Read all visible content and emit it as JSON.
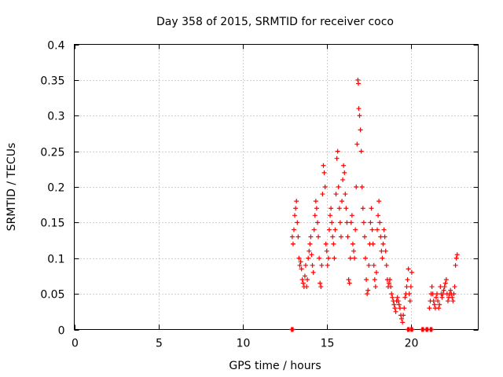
{
  "chart_data": {
    "type": "scatter",
    "title": "Day 358 of 2015, SRMTID for receiver coco",
    "xlabel": "GPS time / hours",
    "ylabel": "SRMTID / TECUs",
    "xlim": [
      0,
      24
    ],
    "ylim": [
      0,
      0.4
    ],
    "xticks": [
      0,
      5,
      10,
      15,
      20
    ],
    "yticks": [
      0,
      0.05,
      0.1,
      0.15,
      0.2,
      0.25,
      0.3,
      0.35,
      0.4
    ],
    "xtick_labels": [
      "0",
      "5",
      "10",
      "15",
      "20"
    ],
    "ytick_labels": [
      "0",
      "0.05",
      "0.1",
      "0.15",
      "0.2",
      "0.25",
      "0.3",
      "0.35",
      "0.4"
    ],
    "grid": true,
    "marker": "+",
    "color": "#ff0000",
    "series": [
      {
        "name": "SRMTID",
        "points": [
          [
            12.95,
            0.13
          ],
          [
            13.0,
            0.12
          ],
          [
            13.05,
            0.14
          ],
          [
            13.1,
            0.16
          ],
          [
            13.15,
            0.17
          ],
          [
            13.2,
            0.18
          ],
          [
            13.25,
            0.15
          ],
          [
            13.3,
            0.13
          ],
          [
            13.35,
            0.1
          ],
          [
            13.4,
            0.09
          ],
          [
            13.45,
            0.095
          ],
          [
            13.5,
            0.085
          ],
          [
            13.55,
            0.07
          ],
          [
            13.6,
            0.065
          ],
          [
            13.65,
            0.06
          ],
          [
            13.7,
            0.075
          ],
          [
            13.75,
            0.09
          ],
          [
            13.8,
            0.06
          ],
          [
            13.85,
            0.07
          ],
          [
            13.9,
            0.1
          ],
          [
            13.95,
            0.11
          ],
          [
            14.0,
            0.12
          ],
          [
            14.05,
            0.13
          ],
          [
            14.1,
            0.105
          ],
          [
            14.15,
            0.09
          ],
          [
            14.2,
            0.08
          ],
          [
            14.25,
            0.14
          ],
          [
            14.3,
            0.16
          ],
          [
            14.35,
            0.18
          ],
          [
            14.4,
            0.17
          ],
          [
            14.45,
            0.15
          ],
          [
            14.5,
            0.13
          ],
          [
            14.55,
            0.1
          ],
          [
            14.6,
            0.065
          ],
          [
            14.65,
            0.06
          ],
          [
            14.7,
            0.09
          ],
          [
            14.75,
            0.19
          ],
          [
            14.8,
            0.23
          ],
          [
            14.85,
            0.22
          ],
          [
            14.9,
            0.2
          ],
          [
            14.95,
            0.12
          ],
          [
            15.0,
            0.11
          ],
          [
            15.05,
            0.09
          ],
          [
            15.1,
            0.1
          ],
          [
            15.15,
            0.14
          ],
          [
            15.2,
            0.16
          ],
          [
            15.25,
            0.17
          ],
          [
            15.3,
            0.15
          ],
          [
            15.35,
            0.13
          ],
          [
            15.4,
            0.12
          ],
          [
            15.45,
            0.1
          ],
          [
            15.5,
            0.14
          ],
          [
            15.55,
            0.19
          ],
          [
            15.6,
            0.24
          ],
          [
            15.65,
            0.25
          ],
          [
            15.7,
            0.2
          ],
          [
            15.75,
            0.17
          ],
          [
            15.8,
            0.15
          ],
          [
            15.85,
            0.13
          ],
          [
            15.9,
            0.18
          ],
          [
            15.95,
            0.21
          ],
          [
            16.0,
            0.23
          ],
          [
            16.05,
            0.22
          ],
          [
            16.1,
            0.19
          ],
          [
            16.15,
            0.17
          ],
          [
            16.2,
            0.15
          ],
          [
            16.25,
            0.13
          ],
          [
            16.3,
            0.07
          ],
          [
            16.35,
            0.065
          ],
          [
            16.4,
            0.1
          ],
          [
            16.45,
            0.15
          ],
          [
            16.5,
            0.16
          ],
          [
            16.55,
            0.12
          ],
          [
            16.6,
            0.11
          ],
          [
            16.65,
            0.1
          ],
          [
            16.7,
            0.14
          ],
          [
            16.75,
            0.2
          ],
          [
            16.8,
            0.26
          ],
          [
            16.85,
            0.35
          ],
          [
            16.88,
            0.345
          ],
          [
            16.9,
            0.31
          ],
          [
            16.95,
            0.3
          ],
          [
            17.0,
            0.28
          ],
          [
            17.05,
            0.25
          ],
          [
            17.1,
            0.2
          ],
          [
            17.15,
            0.17
          ],
          [
            17.2,
            0.15
          ],
          [
            17.25,
            0.13
          ],
          [
            17.3,
            0.1
          ],
          [
            17.35,
            0.07
          ],
          [
            17.4,
            0.05
          ],
          [
            17.45,
            0.055
          ],
          [
            17.5,
            0.09
          ],
          [
            17.55,
            0.12
          ],
          [
            17.6,
            0.15
          ],
          [
            17.65,
            0.17
          ],
          [
            17.7,
            0.14
          ],
          [
            17.75,
            0.12
          ],
          [
            17.8,
            0.09
          ],
          [
            17.85,
            0.07
          ],
          [
            17.9,
            0.06
          ],
          [
            17.95,
            0.08
          ],
          [
            18.0,
            0.14
          ],
          [
            18.05,
            0.16
          ],
          [
            18.1,
            0.18
          ],
          [
            18.15,
            0.15
          ],
          [
            18.2,
            0.13
          ],
          [
            18.25,
            0.11
          ],
          [
            18.3,
            0.1
          ],
          [
            18.35,
            0.12
          ],
          [
            18.4,
            0.14
          ],
          [
            18.45,
            0.13
          ],
          [
            18.5,
            0.11
          ],
          [
            18.55,
            0.09
          ],
          [
            18.6,
            0.07
          ],
          [
            18.65,
            0.06
          ],
          [
            18.7,
            0.065
          ],
          [
            18.75,
            0.07
          ],
          [
            18.8,
            0.06
          ],
          [
            18.85,
            0.05
          ],
          [
            18.9,
            0.045
          ],
          [
            18.95,
            0.04
          ],
          [
            19.0,
            0.035
          ],
          [
            19.05,
            0.03
          ],
          [
            19.1,
            0.025
          ],
          [
            19.15,
            0.04
          ],
          [
            19.2,
            0.045
          ],
          [
            19.25,
            0.04
          ],
          [
            19.3,
            0.035
          ],
          [
            19.35,
            0.03
          ],
          [
            19.4,
            0.02
          ],
          [
            19.45,
            0.015
          ],
          [
            19.5,
            0.01
          ],
          [
            19.55,
            0.02
          ],
          [
            19.6,
            0.03
          ],
          [
            19.65,
            0.045
          ],
          [
            19.7,
            0.05
          ],
          [
            19.75,
            0.06
          ],
          [
            19.8,
            0.07
          ],
          [
            19.85,
            0.085
          ],
          [
            19.9,
            0.05
          ],
          [
            19.95,
            0.04
          ],
          [
            20.0,
            0.06
          ],
          [
            20.05,
            0.08
          ],
          [
            21.1,
            0.03
          ],
          [
            21.15,
            0.04
          ],
          [
            21.2,
            0.05
          ],
          [
            21.25,
            0.06
          ],
          [
            21.3,
            0.05
          ],
          [
            21.35,
            0.04
          ],
          [
            21.4,
            0.035
          ],
          [
            21.45,
            0.03
          ],
          [
            21.5,
            0.045
          ],
          [
            21.55,
            0.05
          ],
          [
            21.6,
            0.04
          ],
          [
            21.65,
            0.03
          ],
          [
            21.7,
            0.035
          ],
          [
            21.75,
            0.06
          ],
          [
            21.8,
            0.05
          ],
          [
            21.85,
            0.045
          ],
          [
            21.9,
            0.05
          ],
          [
            21.95,
            0.055
          ],
          [
            22.0,
            0.06
          ],
          [
            22.05,
            0.065
          ],
          [
            22.1,
            0.07
          ],
          [
            22.15,
            0.05
          ],
          [
            22.2,
            0.04
          ],
          [
            22.25,
            0.045
          ],
          [
            22.3,
            0.05
          ],
          [
            22.35,
            0.055
          ],
          [
            22.4,
            0.05
          ],
          [
            22.45,
            0.045
          ],
          [
            22.5,
            0.04
          ],
          [
            22.55,
            0.05
          ],
          [
            22.6,
            0.06
          ],
          [
            22.65,
            0.09
          ],
          [
            22.7,
            0.1
          ],
          [
            22.75,
            0.105
          ]
        ]
      }
    ],
    "zero_points_x": [
      12.95,
      19.85,
      20.05,
      20.7,
      20.95,
      21.2
    ]
  }
}
